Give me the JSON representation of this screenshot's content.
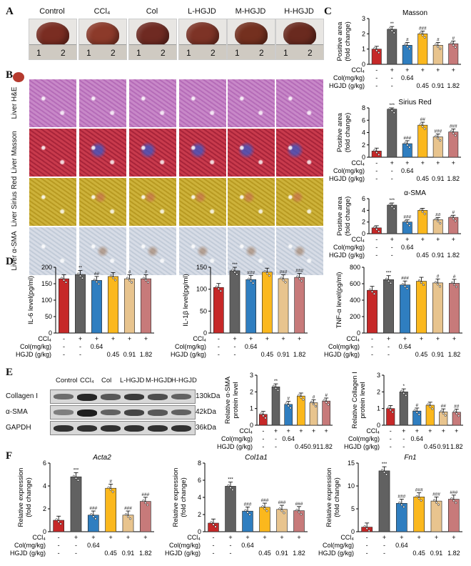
{
  "panels": {
    "A": "A",
    "B": "B",
    "C": "C",
    "D": "D",
    "E": "E",
    "F": "F"
  },
  "groups": [
    "Control",
    "CCl₄",
    "Col",
    "L-HGJD",
    "M-HGJD",
    "H-HGJD"
  ],
  "ruler_numbers": [
    "1",
    "2"
  ],
  "stain_rows": [
    "Liver H&E",
    "Liver Masson",
    "Liver Sirius Red",
    "Liver α-SMA"
  ],
  "treatment_table": {
    "rows": [
      {
        "label": "CCl₄",
        "values": [
          "-",
          "+",
          "+",
          "+",
          "+",
          "+"
        ]
      },
      {
        "label": "Col(mg/kg)",
        "values": [
          "-",
          "-",
          "0.64",
          "",
          "",
          ""
        ]
      },
      {
        "label": "HGJD (g/kg)",
        "values": [
          "-",
          "-",
          "",
          "0.45",
          "0.91",
          "1.82"
        ]
      }
    ]
  },
  "colors": [
    "#c62828",
    "#616161",
    "#2f7ec0",
    "#fbb81d",
    "#e8c48e",
    "#c77a7a"
  ],
  "blot": {
    "header": [
      "Control",
      "CCl₄",
      "Col",
      "L-HGJD",
      "M-HGJD",
      "H-HGJD"
    ],
    "rows": [
      {
        "name": "Collagen I",
        "kda": "130kDa"
      },
      {
        "name": "α-SMA",
        "kda": "42kDa"
      },
      {
        "name": "GAPDH",
        "kda": "36kDa"
      }
    ]
  },
  "chart_data": [
    {
      "id": "C1",
      "type": "bar",
      "title": "Masson",
      "ylabel": "Positive area\n(fold change)",
      "ylim": [
        0,
        3
      ],
      "yticks": [
        0,
        1,
        2,
        3
      ],
      "values": [
        1.0,
        2.3,
        1.25,
        2.0,
        1.25,
        1.35
      ],
      "sig": [
        "",
        "**",
        "#",
        "###",
        "#",
        "#"
      ]
    },
    {
      "id": "C2",
      "type": "bar",
      "title": "Sirius Red",
      "ylabel": "Positive area\n(fold change)",
      "ylim": [
        0,
        8
      ],
      "yticks": [
        0,
        2,
        4,
        6,
        8
      ],
      "values": [
        1.0,
        7.8,
        2.2,
        5.2,
        3.3,
        4.1
      ],
      "sig": [
        "",
        "***",
        "###",
        "##",
        "###",
        "###"
      ]
    },
    {
      "id": "C3",
      "type": "bar",
      "title": "α-SMA",
      "ylabel": "Positive area\n(fold change)",
      "ylim": [
        0,
        6
      ],
      "yticks": [
        0,
        2,
        4,
        6
      ],
      "values": [
        1.0,
        4.9,
        2.0,
        4.0,
        2.4,
        2.8
      ],
      "sig": [
        "",
        "***",
        "###",
        "",
        "##",
        "#"
      ]
    },
    {
      "id": "D1",
      "type": "bar",
      "ylabel": "IL-6 level(pg/ml)",
      "ylim": [
        0,
        200
      ],
      "yticks": [
        0,
        50,
        100,
        150,
        200
      ],
      "values": [
        165,
        178,
        160,
        172,
        165,
        165
      ],
      "sig": [
        "",
        "**",
        "##",
        "",
        "#",
        "#"
      ]
    },
    {
      "id": "D2",
      "type": "bar",
      "ylabel": "IL-1β level(pg/ml)",
      "ylim": [
        0,
        150
      ],
      "yticks": [
        0,
        50,
        100,
        150
      ],
      "values": [
        104,
        142,
        122,
        139,
        124,
        127
      ],
      "sig": [
        "",
        "***",
        "###",
        "",
        "###",
        "###"
      ]
    },
    {
      "id": "D3",
      "type": "bar",
      "ylabel": "TNF-α level(pg/ml)",
      "ylim": [
        0,
        800
      ],
      "yticks": [
        0,
        200,
        400,
        600,
        800
      ],
      "values": [
        520,
        650,
        585,
        630,
        610,
        605
      ],
      "sig": [
        "",
        "***",
        "###",
        "",
        "#",
        "#"
      ]
    },
    {
      "id": "E1",
      "type": "bar",
      "ylabel": "Relative α-SMA\nprotein level",
      "ylim": [
        0,
        3
      ],
      "yticks": [
        0,
        1,
        2,
        3
      ],
      "values": [
        0.65,
        2.3,
        1.25,
        1.75,
        1.35,
        1.45
      ],
      "sig": [
        "",
        "**",
        "#",
        "",
        "#",
        "#"
      ]
    },
    {
      "id": "E2",
      "type": "bar",
      "ylabel": "Relative Collagen I\nprotein level",
      "ylim": [
        0,
        3
      ],
      "yticks": [
        0,
        1,
        2,
        3
      ],
      "values": [
        1.0,
        2.0,
        0.85,
        1.2,
        0.8,
        0.78
      ],
      "sig": [
        "",
        "*",
        "#",
        "",
        "##",
        "##"
      ]
    },
    {
      "id": "F1",
      "type": "bar",
      "title": "Acta2",
      "ylabel": "Relative expression\n(fold change)",
      "ylim": [
        0,
        6
      ],
      "yticks": [
        0,
        2,
        4,
        6
      ],
      "values": [
        1.0,
        4.8,
        1.45,
        3.8,
        1.45,
        2.65
      ],
      "sig": [
        "",
        "***",
        "###",
        "#",
        "###",
        "###"
      ]
    },
    {
      "id": "F2",
      "type": "bar",
      "title": "Col1a1",
      "ylabel": "Relative expression\n(fold change)",
      "ylim": [
        0,
        8
      ],
      "yticks": [
        0,
        2,
        4,
        6,
        8
      ],
      "values": [
        1.0,
        5.3,
        2.4,
        2.85,
        2.6,
        2.45
      ],
      "sig": [
        "",
        "***",
        "###",
        "###",
        "###",
        "###"
      ]
    },
    {
      "id": "F3",
      "type": "bar",
      "title": "Fn1",
      "ylabel": "Relative expression\n(fold change)",
      "ylim": [
        0,
        15
      ],
      "yticks": [
        0,
        5,
        10,
        15
      ],
      "values": [
        1.0,
        13.3,
        6.2,
        7.6,
        6.7,
        7.1
      ],
      "sig": [
        "",
        "***",
        "###",
        "###",
        "###",
        "###"
      ]
    }
  ]
}
